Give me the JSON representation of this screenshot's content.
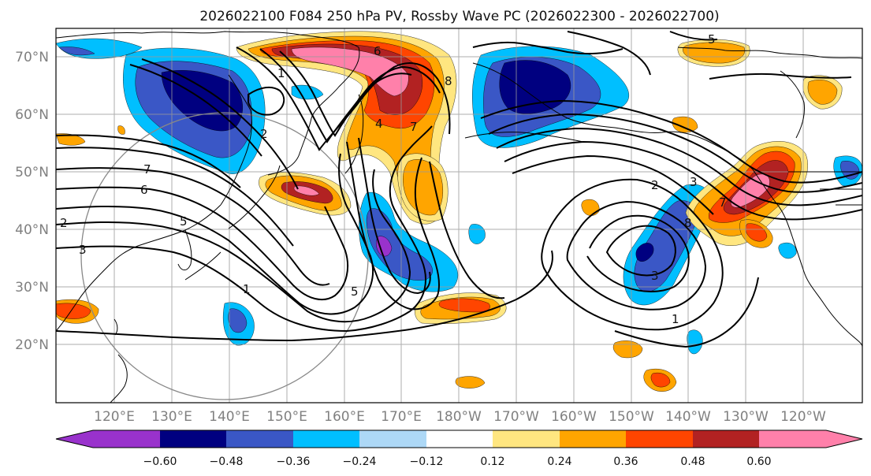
{
  "title": "2026022100 F084 250 hPa PV, Rossby Wave PC (2026022300 - 2026022700)",
  "map": {
    "lat_labels": [
      "70°N",
      "60°N",
      "50°N",
      "40°N",
      "30°N",
      "20°N"
    ],
    "lon_labels": [
      "120°E",
      "130°E",
      "140°E",
      "150°E",
      "160°E",
      "170°E",
      "180°W",
      "170°W",
      "160°W",
      "150°W",
      "140°W",
      "130°W",
      "120°W"
    ],
    "contour_labels": [
      "1",
      "2",
      "3",
      "4",
      "5",
      "6",
      "7",
      "8",
      "7",
      "6",
      "5",
      "2",
      "3",
      "1",
      "5",
      "8",
      "7",
      "3",
      "2",
      "1"
    ]
  },
  "colorbar": {
    "ticks": [
      "−0.60",
      "−0.48",
      "−0.36",
      "−0.24",
      "−0.12",
      "0.12",
      "0.24",
      "0.36",
      "0.48",
      "0.60"
    ],
    "colors": [
      "#9932cc",
      "#000080",
      "#3a57c6",
      "#00bfff",
      "#add8f6",
      "#ffffff",
      "#ffe680",
      "#ffa500",
      "#ff4500",
      "#b22222",
      "#ff80aa"
    ]
  },
  "colors": {
    "neg_strong": "#000080",
    "neg_mid": "#3a57c6",
    "neg_light": "#00bfff",
    "neg_pale": "#add8f6",
    "neg_extreme": "#9932cc",
    "pos_pale": "#ffe680",
    "pos_light": "#ffa500",
    "pos_mid": "#ff4500",
    "pos_strong": "#b22222",
    "pos_extreme": "#ff80aa"
  }
}
